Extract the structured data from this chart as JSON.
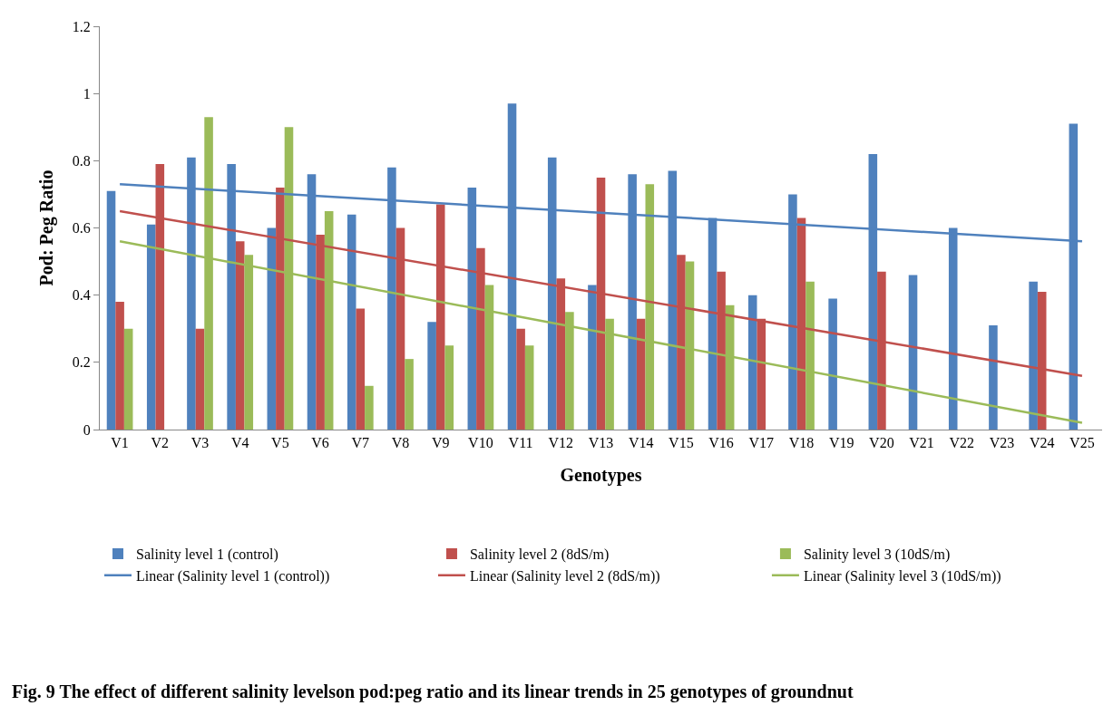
{
  "chart_data": {
    "type": "bar",
    "xlabel": "Genotypes",
    "ylabel": "Pod: Peg Ratio",
    "categories": [
      "V1",
      "V2",
      "V3",
      "V4",
      "V5",
      "V6",
      "V7",
      "V8",
      "V9",
      "V10",
      "V11",
      "V12",
      "V13",
      "V14",
      "V15",
      "V16",
      "V17",
      "V18",
      "V19",
      "V20",
      "V21",
      "V22",
      "V23",
      "V24",
      "V25"
    ],
    "series": [
      {
        "name": "Salinity level 1 (control)",
        "color": "#4f81bd",
        "values": [
          0.71,
          0.61,
          0.81,
          0.79,
          0.6,
          0.76,
          0.64,
          0.78,
          0.32,
          0.72,
          0.97,
          0.81,
          0.43,
          0.76,
          0.77,
          0.63,
          0.4,
          0.7,
          0.39,
          0.82,
          0.46,
          0.6,
          0.31,
          0.44,
          0.91
        ]
      },
      {
        "name": "Salinity level 2 (8dS/m)",
        "color": "#c0504d",
        "values": [
          0.38,
          0.79,
          0.3,
          0.56,
          0.72,
          0.58,
          0.36,
          0.6,
          0.67,
          0.54,
          0.3,
          0.45,
          0.75,
          0.33,
          0.52,
          0.47,
          0.33,
          0.63,
          null,
          0.47,
          null,
          null,
          null,
          0.41,
          null
        ]
      },
      {
        "name": "Salinity level 3 (10dS/m)",
        "color": "#9bbb59",
        "values": [
          0.3,
          null,
          0.93,
          0.52,
          0.9,
          0.65,
          0.13,
          0.21,
          0.25,
          0.43,
          0.25,
          0.35,
          0.33,
          0.73,
          0.5,
          0.37,
          null,
          0.44,
          null,
          null,
          null,
          null,
          null,
          null,
          null
        ]
      },
      {
        "name": "Linear (Salinity level 1 (control))",
        "type": "line",
        "color": "#4f81bd",
        "x": [
          "V1",
          "V25"
        ],
        "values": [
          0.73,
          0.56
        ]
      },
      {
        "name": "Linear (Salinity level 2 (8dS/m))",
        "type": "line",
        "color": "#c0504d",
        "x": [
          "V1",
          "V25"
        ],
        "values": [
          0.65,
          0.16
        ]
      },
      {
        "name": "Linear (Salinity level 3 (10dS/m))",
        "type": "line",
        "color": "#9bbb59",
        "x": [
          "V1",
          "V25"
        ],
        "values": [
          0.56,
          0.02
        ]
      }
    ],
    "ylim": [
      0,
      1.2
    ],
    "yticks": [
      0,
      0.2,
      0.4,
      0.6,
      0.8,
      1,
      1.2
    ],
    "legend": "bottom",
    "annotations": [
      "Fig. 9 The effect of different salinity levelson pod:peg ratio and its linear trends in 25 genotypes of groundnut"
    ]
  }
}
